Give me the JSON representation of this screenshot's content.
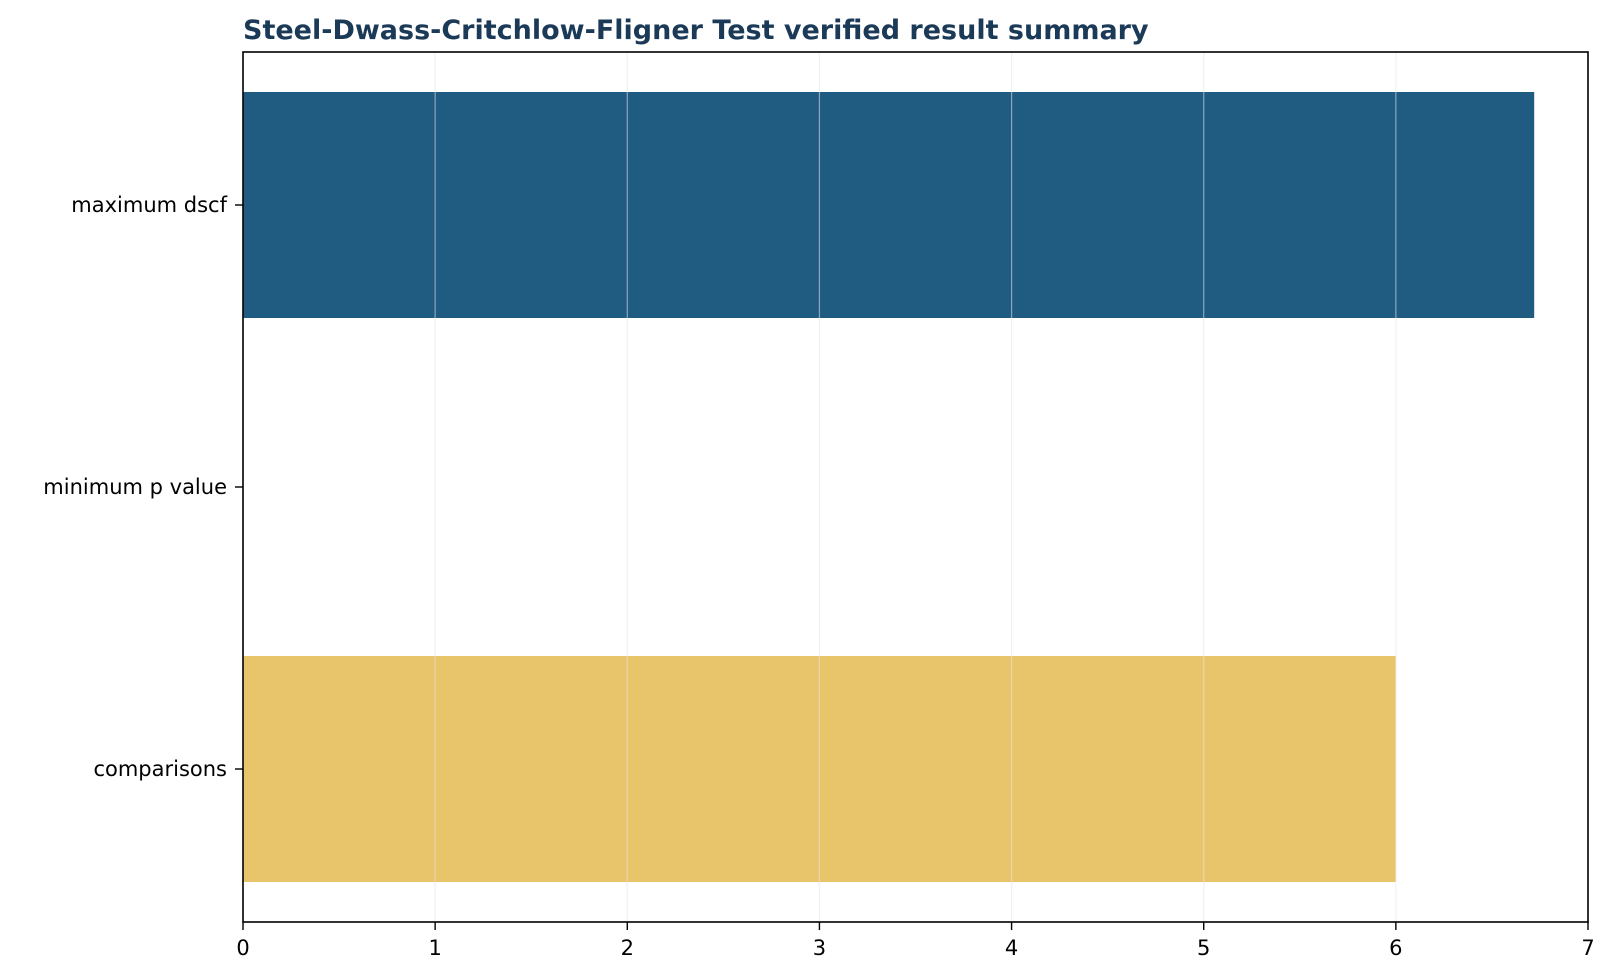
{
  "chart_data": {
    "type": "bar",
    "orientation": "horizontal",
    "title": "Steel-Dwass-Critchlow-Fligner Test verified result summary",
    "xlabel": "",
    "ylabel": "",
    "categories": [
      "maximum dscf",
      "minimum p value",
      "comparisons"
    ],
    "values": [
      6.72,
      0.0,
      6.0
    ],
    "bar_colors": [
      "#205b81",
      "#205b81",
      "#e8c46b"
    ],
    "xlim": [
      0,
      7
    ],
    "x_ticks": [
      0,
      1,
      2,
      3,
      4,
      5,
      6,
      7
    ],
    "grid": true,
    "legend": "none"
  },
  "colors": {
    "title": "#1b3a57",
    "grid": "#e5e5e5"
  }
}
